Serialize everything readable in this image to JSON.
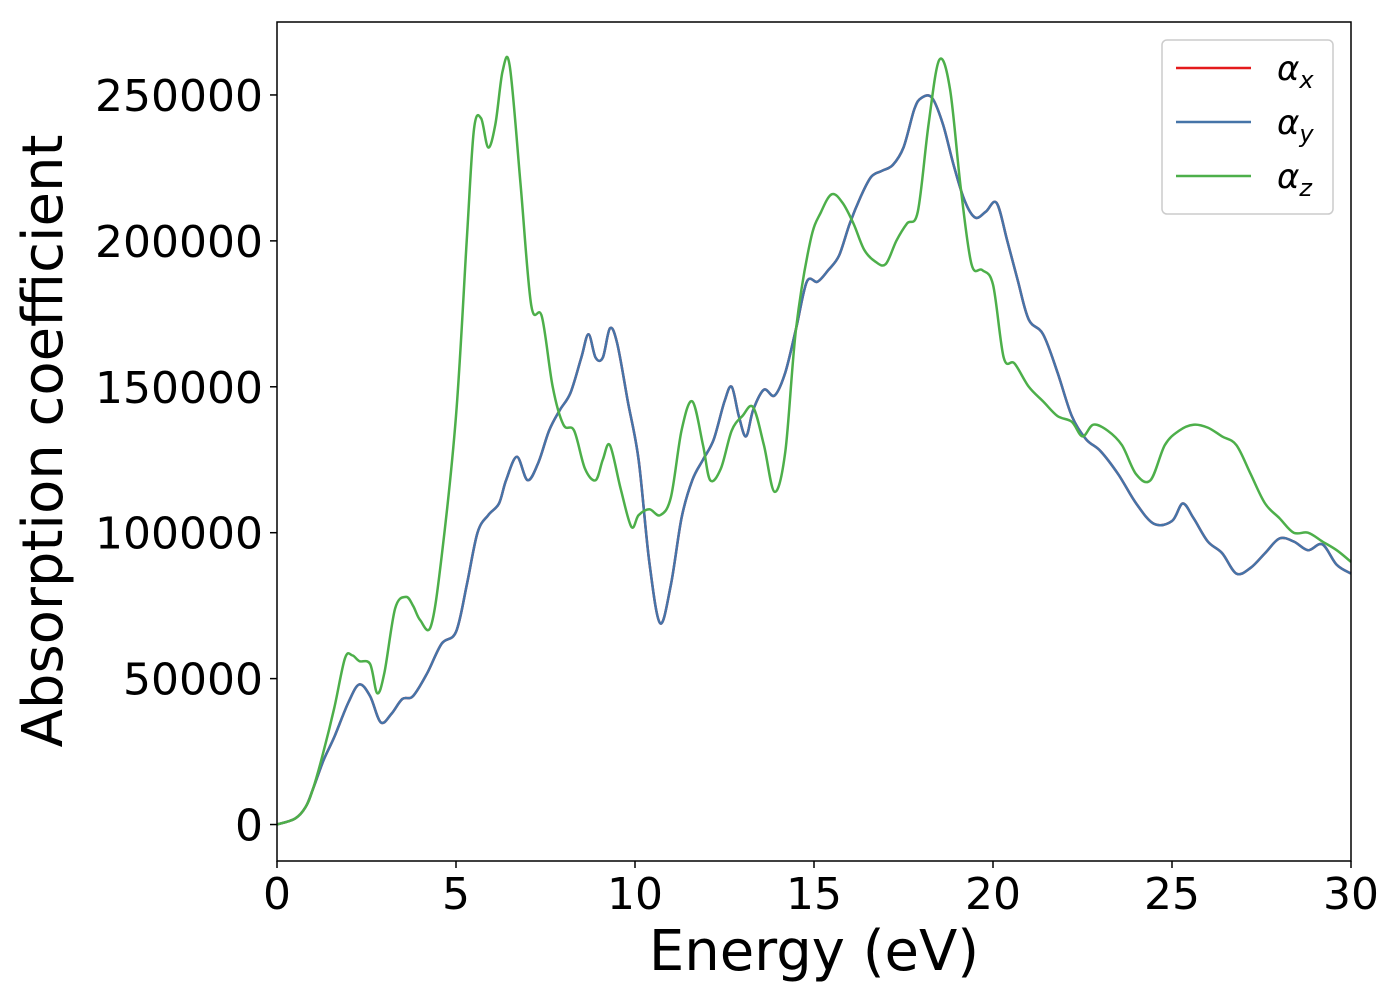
{
  "chart_data": {
    "type": "line",
    "title": "",
    "xlabel": "Energy (eV)",
    "ylabel": "Absorption coefficient",
    "xlim": [
      0,
      30
    ],
    "ylim": [
      -12500,
      275000
    ],
    "x_ticks": [
      0,
      5,
      10,
      15,
      20,
      25,
      30
    ],
    "x_tick_labels": [
      "0",
      "5",
      "10",
      "15",
      "20",
      "25",
      "30"
    ],
    "y_ticks": [
      0,
      50000,
      100000,
      150000,
      200000,
      250000
    ],
    "y_tick_labels": [
      "0",
      "50000",
      "100000",
      "150000",
      "200000",
      "250000"
    ],
    "grid": false,
    "legend_position": "top-right",
    "series": [
      {
        "name": "α_x",
        "label_main": "α",
        "label_sub": "x",
        "color": "#e41a1c",
        "x": [
          0,
          0.5,
          0.8,
          1.0,
          1.3,
          1.6,
          2.0,
          2.3,
          2.6,
          2.9,
          3.2,
          3.5,
          3.8,
          4.2,
          4.6,
          5.0,
          5.3,
          5.6,
          5.9,
          6.2,
          6.4,
          6.7,
          7.0,
          7.3,
          7.6,
          7.9,
          8.2,
          8.5,
          8.7,
          8.9,
          9.1,
          9.3,
          9.5,
          9.8,
          10.1,
          10.4,
          10.7,
          11.0,
          11.3,
          11.6,
          11.9,
          12.2,
          12.5,
          12.7,
          12.9,
          13.1,
          13.3,
          13.6,
          13.9,
          14.2,
          14.5,
          14.8,
          15.1,
          15.4,
          15.7,
          16.0,
          16.3,
          16.6,
          16.9,
          17.2,
          17.5,
          17.8,
          18.0,
          18.3,
          18.6,
          18.9,
          19.2,
          19.5,
          19.8,
          20.1,
          20.4,
          20.7,
          21.0,
          21.4,
          21.8,
          22.2,
          22.6,
          23.0,
          23.5,
          24.0,
          24.5,
          25.0,
          25.3,
          25.6,
          26.0,
          26.4,
          26.8,
          27.2,
          27.6,
          28.0,
          28.4,
          28.8,
          29.2,
          29.6,
          30.0
        ],
        "y": [
          0,
          2000,
          6000,
          12000,
          22000,
          30000,
          42000,
          48000,
          44000,
          35000,
          38000,
          43000,
          44000,
          52000,
          62000,
          66000,
          82000,
          100000,
          106000,
          110000,
          118000,
          126000,
          118000,
          124000,
          135000,
          142000,
          148000,
          160000,
          168000,
          160000,
          160000,
          170000,
          165000,
          145000,
          125000,
          90000,
          69000,
          82000,
          105000,
          118000,
          125000,
          132000,
          145000,
          150000,
          140000,
          133000,
          142000,
          149000,
          147000,
          155000,
          170000,
          186000,
          186000,
          190000,
          195000,
          206000,
          215000,
          222000,
          224000,
          226000,
          232000,
          245000,
          249000,
          249000,
          240000,
          226000,
          214000,
          208000,
          210000,
          213000,
          200000,
          186000,
          173000,
          168000,
          155000,
          140000,
          132000,
          128000,
          120000,
          110000,
          103000,
          104000,
          110000,
          105000,
          97000,
          93000,
          86000,
          88000,
          93000,
          98000,
          97000,
          94000,
          96000,
          89000,
          86000
        ]
      },
      {
        "name": "α_y",
        "label_main": "α",
        "label_sub": "y",
        "color": "#4574a8",
        "x": [
          0,
          0.5,
          0.8,
          1.0,
          1.3,
          1.6,
          2.0,
          2.3,
          2.6,
          2.9,
          3.2,
          3.5,
          3.8,
          4.2,
          4.6,
          5.0,
          5.3,
          5.6,
          5.9,
          6.2,
          6.4,
          6.7,
          7.0,
          7.3,
          7.6,
          7.9,
          8.2,
          8.5,
          8.7,
          8.9,
          9.1,
          9.3,
          9.5,
          9.8,
          10.1,
          10.4,
          10.7,
          11.0,
          11.3,
          11.6,
          11.9,
          12.2,
          12.5,
          12.7,
          12.9,
          13.1,
          13.3,
          13.6,
          13.9,
          14.2,
          14.5,
          14.8,
          15.1,
          15.4,
          15.7,
          16.0,
          16.3,
          16.6,
          16.9,
          17.2,
          17.5,
          17.8,
          18.0,
          18.3,
          18.6,
          18.9,
          19.2,
          19.5,
          19.8,
          20.1,
          20.4,
          20.7,
          21.0,
          21.4,
          21.8,
          22.2,
          22.6,
          23.0,
          23.5,
          24.0,
          24.5,
          25.0,
          25.3,
          25.6,
          26.0,
          26.4,
          26.8,
          27.2,
          27.6,
          28.0,
          28.4,
          28.8,
          29.2,
          29.6,
          30.0
        ],
        "y": [
          0,
          2000,
          6000,
          12000,
          22000,
          30000,
          42000,
          48000,
          44000,
          35000,
          38000,
          43000,
          44000,
          52000,
          62000,
          66000,
          82000,
          100000,
          106000,
          110000,
          118000,
          126000,
          118000,
          124000,
          135000,
          142000,
          148000,
          160000,
          168000,
          160000,
          160000,
          170000,
          165000,
          145000,
          125000,
          90000,
          69000,
          82000,
          105000,
          118000,
          125000,
          132000,
          145000,
          150000,
          140000,
          133000,
          142000,
          149000,
          147000,
          155000,
          170000,
          186000,
          186000,
          190000,
          195000,
          206000,
          215000,
          222000,
          224000,
          226000,
          232000,
          245000,
          249000,
          249000,
          240000,
          226000,
          214000,
          208000,
          210000,
          213000,
          200000,
          186000,
          173000,
          168000,
          155000,
          140000,
          132000,
          128000,
          120000,
          110000,
          103000,
          104000,
          110000,
          105000,
          97000,
          93000,
          86000,
          88000,
          93000,
          98000,
          97000,
          94000,
          96000,
          89000,
          86000
        ]
      },
      {
        "name": "α_z",
        "label_main": "α",
        "label_sub": "z",
        "color": "#4daf4a",
        "x": [
          0,
          0.5,
          0.8,
          1.0,
          1.3,
          1.6,
          1.9,
          2.1,
          2.3,
          2.6,
          2.8,
          3.0,
          3.3,
          3.6,
          3.8,
          4.0,
          4.3,
          4.6,
          5.0,
          5.3,
          5.5,
          5.7,
          5.9,
          6.1,
          6.3,
          6.5,
          6.8,
          7.1,
          7.4,
          7.7,
          8.0,
          8.3,
          8.6,
          8.9,
          9.1,
          9.3,
          9.6,
          9.9,
          10.1,
          10.4,
          10.7,
          11.0,
          11.3,
          11.6,
          11.9,
          12.1,
          12.4,
          12.7,
          13.0,
          13.3,
          13.6,
          13.9,
          14.2,
          14.5,
          14.9,
          15.2,
          15.5,
          15.8,
          16.1,
          16.4,
          16.7,
          17.0,
          17.3,
          17.6,
          17.9,
          18.2,
          18.5,
          18.8,
          19.1,
          19.4,
          19.7,
          20.0,
          20.3,
          20.6,
          21.0,
          21.4,
          21.8,
          22.2,
          22.5,
          22.8,
          23.2,
          23.6,
          24.0,
          24.4,
          24.8,
          25.2,
          25.6,
          26.0,
          26.4,
          26.8,
          27.2,
          27.6,
          28.0,
          28.4,
          28.8,
          29.2,
          29.6,
          30.0
        ],
        "y": [
          0,
          2000,
          6000,
          12000,
          25000,
          40000,
          57000,
          58000,
          56000,
          55000,
          45000,
          52000,
          74000,
          78000,
          75000,
          70000,
          68000,
          92000,
          140000,
          200000,
          238000,
          242000,
          232000,
          240000,
          258000,
          260000,
          220000,
          178000,
          174000,
          150000,
          137000,
          135000,
          122000,
          118000,
          125000,
          130000,
          115000,
          102000,
          106000,
          108000,
          106000,
          112000,
          135000,
          145000,
          130000,
          118000,
          122000,
          135000,
          140000,
          143000,
          130000,
          114000,
          128000,
          170000,
          200000,
          210000,
          216000,
          213000,
          206000,
          197000,
          193000,
          192000,
          200000,
          206000,
          210000,
          240000,
          262000,
          252000,
          218000,
          192000,
          190000,
          185000,
          160000,
          158000,
          150000,
          145000,
          140000,
          138000,
          133000,
          137000,
          135000,
          130000,
          120000,
          118000,
          130000,
          135000,
          137000,
          136000,
          133000,
          130000,
          120000,
          110000,
          105000,
          100000,
          100000,
          97000,
          94000,
          90000
        ]
      }
    ]
  }
}
